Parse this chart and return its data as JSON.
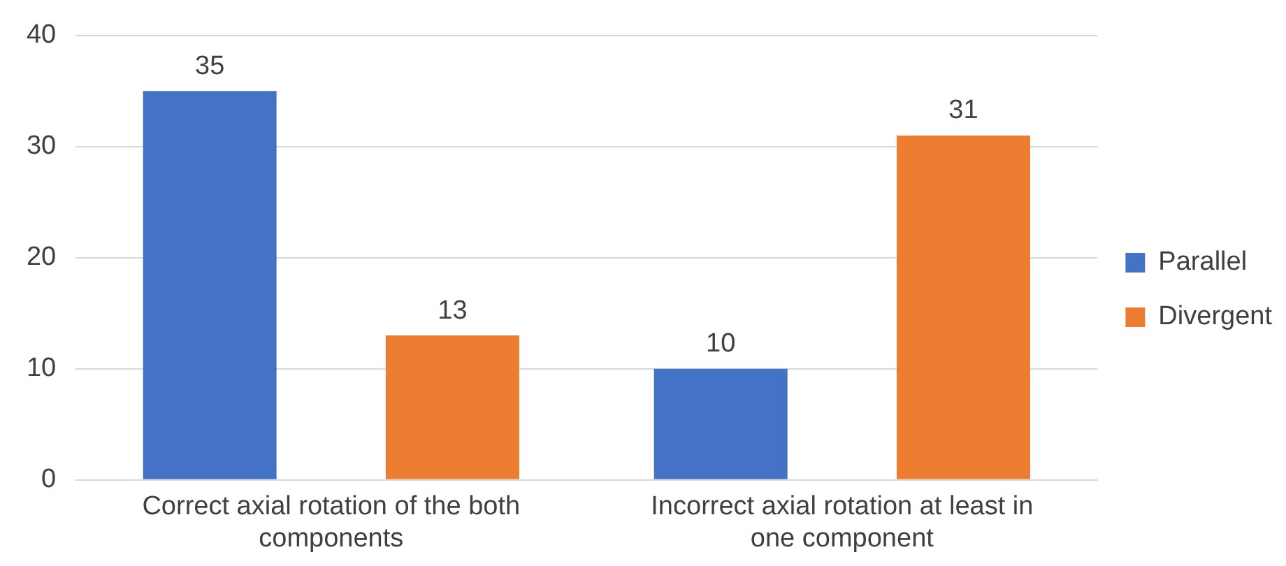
{
  "chart_data": {
    "type": "bar",
    "categories": [
      "Correct axial rotation of the both components",
      "Incorrect axial rotation at least in one component"
    ],
    "series": [
      {
        "name": "Parallel",
        "color": "#4472c4",
        "values": [
          35,
          10
        ]
      },
      {
        "name": "Divergent",
        "color": "#ed7d31",
        "values": [
          13,
          31
        ]
      }
    ],
    "ylim": [
      0,
      40
    ],
    "yticks": [
      0,
      10,
      20,
      30,
      40
    ],
    "grid": "y",
    "legend": "right",
    "data_labels": true
  }
}
